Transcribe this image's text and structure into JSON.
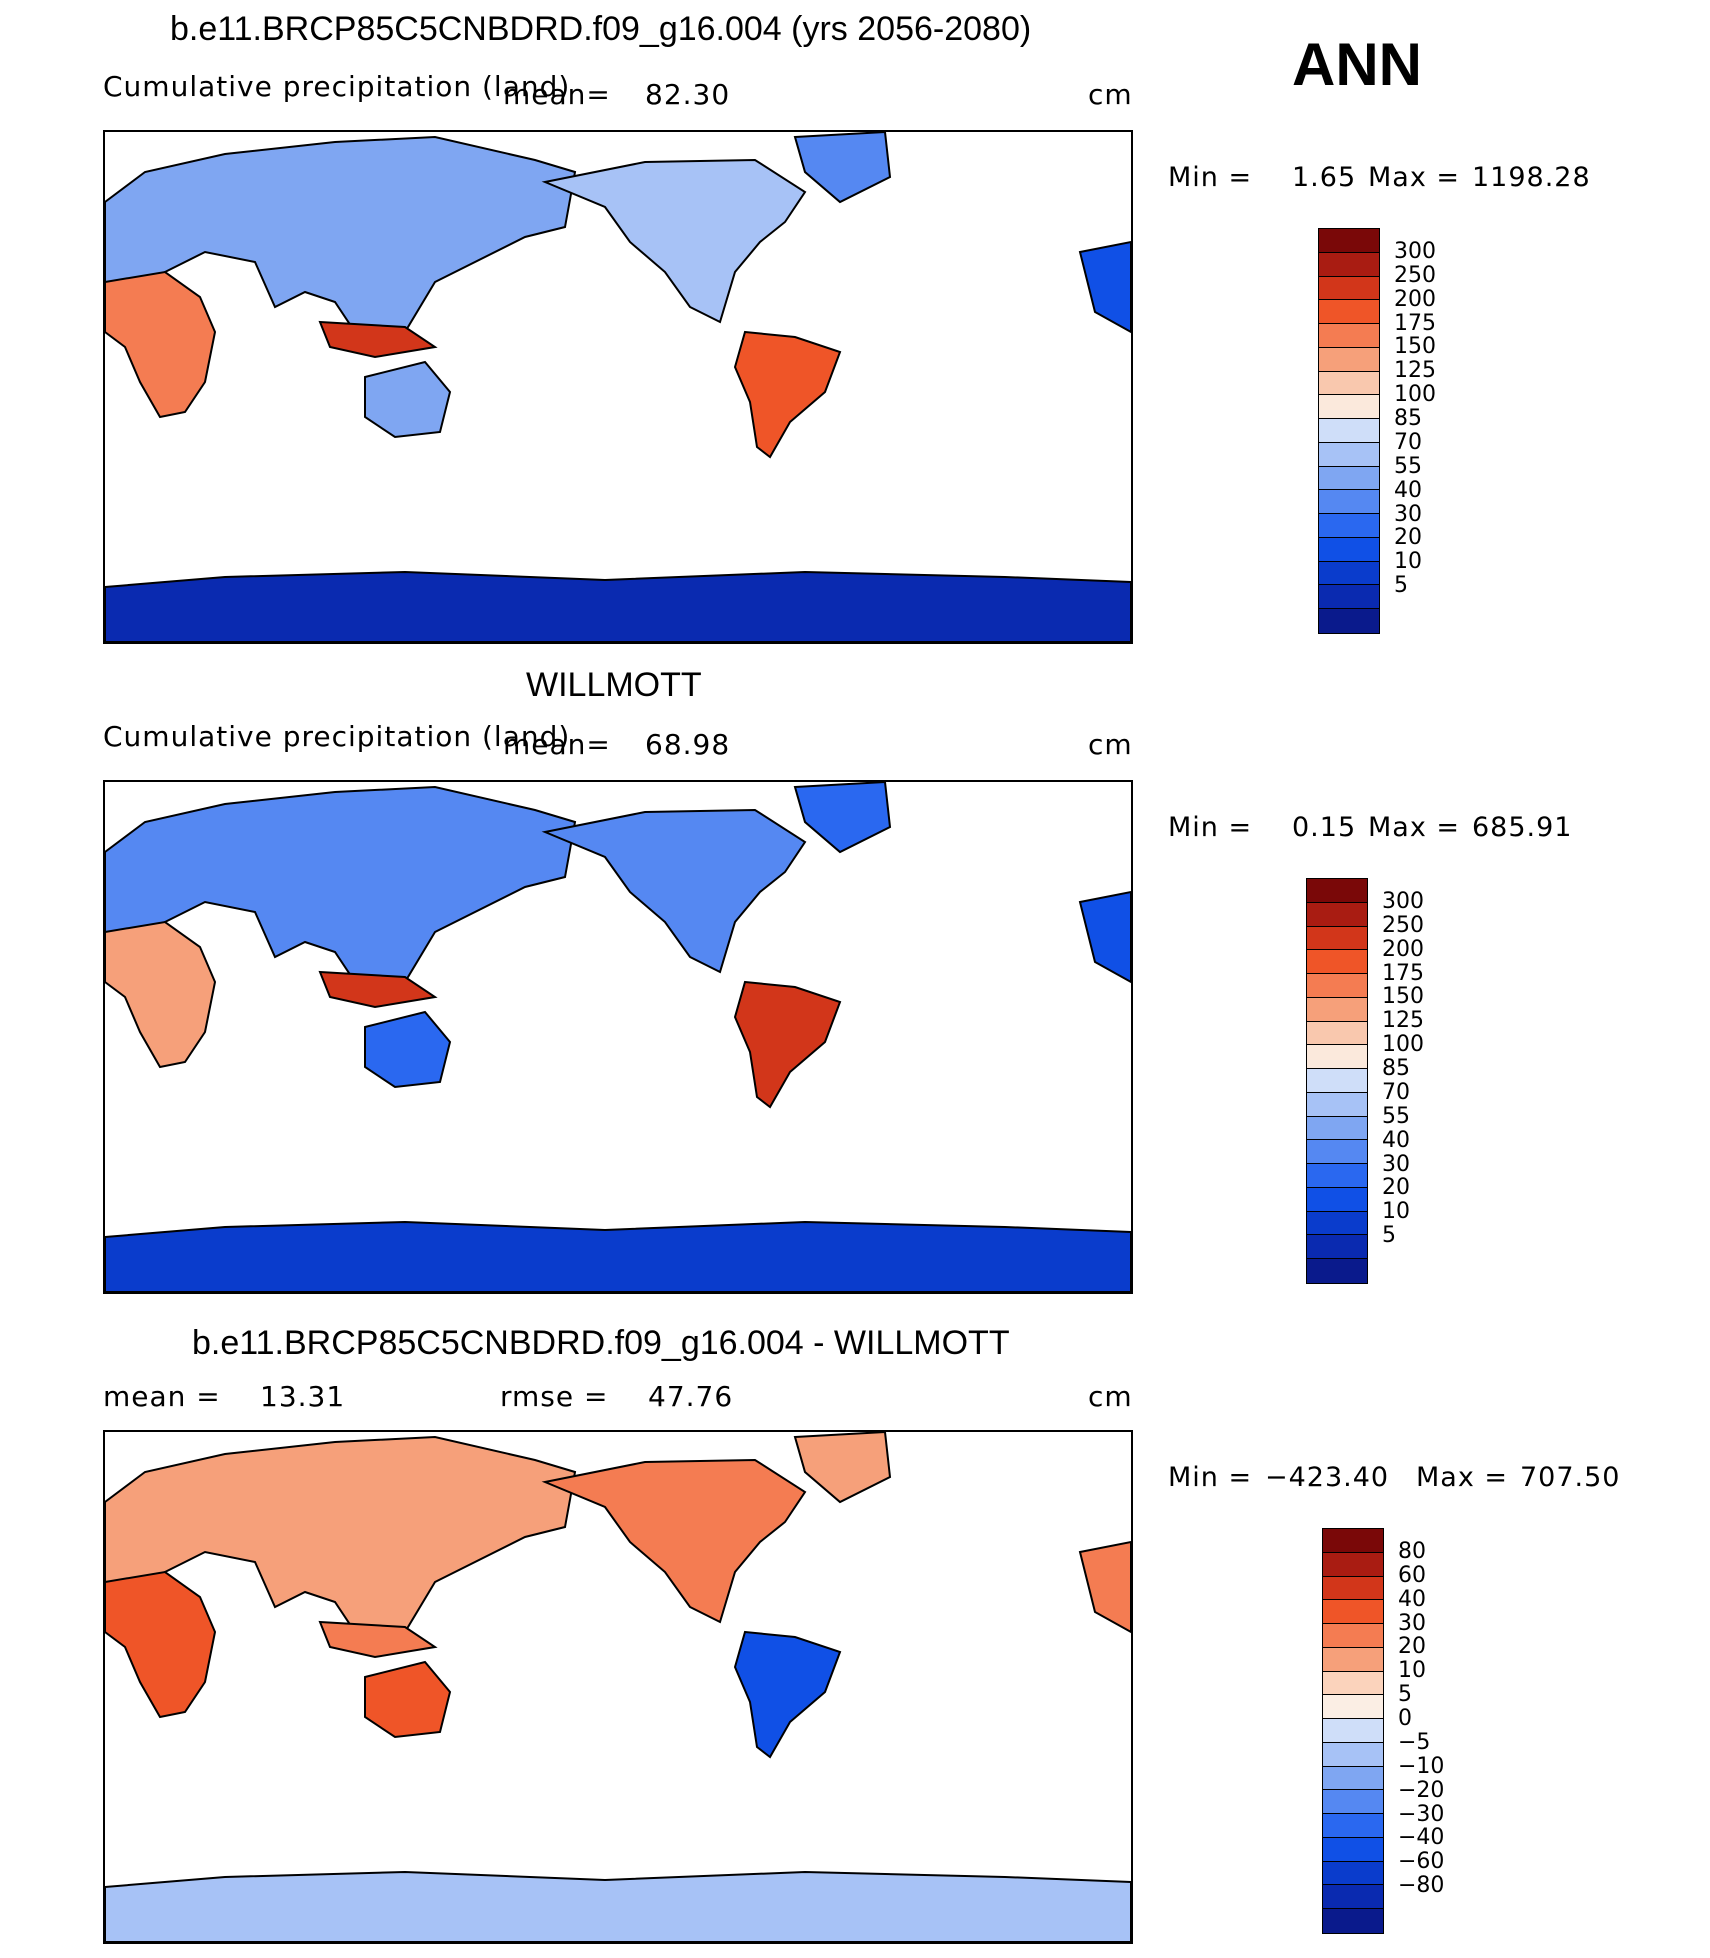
{
  "header": {
    "label": "ANN"
  },
  "palette_pos": [
    "#0a1a8c",
    "#0a2ab0",
    "#0a3ccc",
    "#1050e6",
    "#2a68f0",
    "#5588f2",
    "#7fa6f2",
    "#a7c2f6",
    "#cfdef9",
    "#fbe9dc",
    "#f9c8ae",
    "#f6a07a",
    "#f47c52",
    "#ef5528",
    "#d2361a",
    "#a91c12",
    "#7a0808"
  ],
  "palette_diff": [
    "#0a1a8c",
    "#0a2ab0",
    "#0a3ccc",
    "#1050e6",
    "#2a68f0",
    "#5588f2",
    "#7fa6f2",
    "#a7c2f6",
    "#cfdef9",
    "#fbeee4",
    "#fbd3bc",
    "#f6a07a",
    "#f47c52",
    "#ef5528",
    "#d2361a",
    "#a91c12",
    "#7a0808"
  ],
  "panels": [
    {
      "title": "b.e11.BRCP85C5CNBDRD.f09_g16.004 (yrs 2056-2080)",
      "variable": "Cumulative precipitation (land)",
      "mean_label": "mean=",
      "mean_value": "82.30",
      "units": "cm",
      "min_label": "Min =",
      "min_value": "1.65",
      "max_label": "Max =",
      "max_value": "1198.28",
      "colorbar_labels": [
        "300",
        "250",
        "200",
        "175",
        "150",
        "125",
        "100",
        "85",
        "70",
        "55",
        "40",
        "30",
        "20",
        "10",
        "5"
      ]
    },
    {
      "title": "WILLMOTT",
      "variable": "Cumulative precipitation (land)",
      "mean_label": "mean=",
      "mean_value": "68.98",
      "units": "cm",
      "min_label": "Min =",
      "min_value": "0.15",
      "max_label": "Max =",
      "max_value": "685.91",
      "colorbar_labels": [
        "300",
        "250",
        "200",
        "175",
        "150",
        "125",
        "100",
        "85",
        "70",
        "55",
        "40",
        "30",
        "20",
        "10",
        "5"
      ]
    },
    {
      "title": "b.e11.BRCP85C5CNBDRD.f09_g16.004 - WILLMOTT",
      "mean_label": "mean =",
      "mean_value": "13.31",
      "rmse_label": "rmse =",
      "rmse_value": "47.76",
      "units": "cm",
      "min_label": "Min =",
      "min_value": "−423.40",
      "max_label": "Max =",
      "max_value": "707.50",
      "colorbar_labels": [
        "80",
        "60",
        "40",
        "30",
        "20",
        "10",
        "5",
        "0",
        "−5",
        "−10",
        "−20",
        "−30",
        "−40",
        "−60",
        "−80"
      ]
    }
  ]
}
